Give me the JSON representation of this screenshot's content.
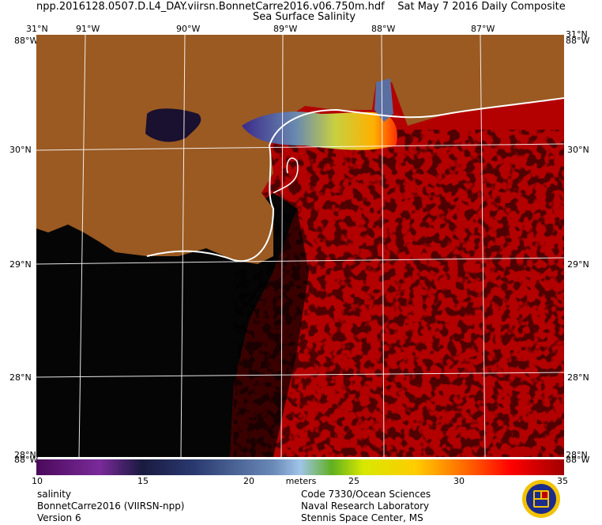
{
  "header": {
    "filename": "npp.2016128.0507.D.L4_DAY.viirsn.BonnetCarre2016.v06.750m.hdf",
    "date": "Sat May  7 2016 Daily Composite",
    "product": "Sea Surface Salinity"
  },
  "map": {
    "lon_labels": [
      "91°W",
      "90°W",
      "89°W",
      "88°W",
      "87°W"
    ],
    "lat_labels": [
      "30°N",
      "29°N",
      "28°N"
    ],
    "corner_top": "31°N",
    "corner_bottom": "28°N",
    "corner_lon_left": "88°W",
    "corner_lon_right": "88°W",
    "colors": {
      "land": "#9a5a22",
      "ocean_high": "#b30000",
      "ocean_low": "#050505",
      "coast": "#ffffff"
    }
  },
  "colorbar": {
    "ticks": [
      "10",
      "15",
      "20",
      "25",
      "30",
      "35"
    ],
    "unit": "meters",
    "range": [
      10,
      35
    ]
  },
  "footer": {
    "left": [
      "salinity",
      "BonnetCarre2016 (VIIRSN-npp)",
      "Version 6"
    ],
    "right": [
      "Code 7330/Ocean Sciences",
      "Naval Research Laboratory",
      "Stennis Space Center, MS"
    ]
  }
}
